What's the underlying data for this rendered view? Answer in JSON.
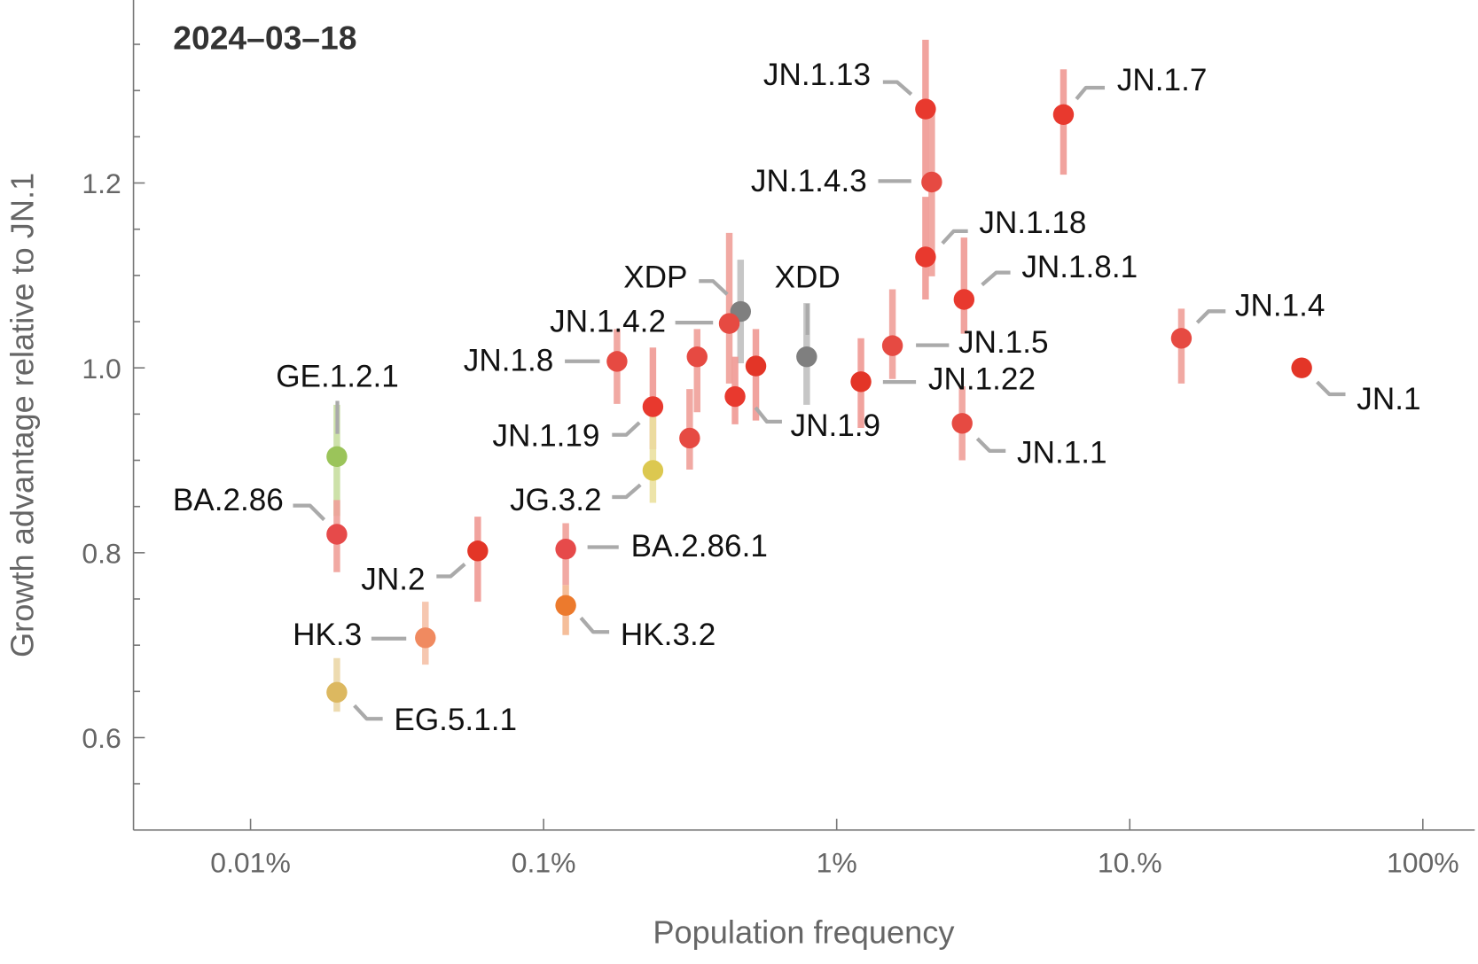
{
  "chart_data": {
    "type": "scatter",
    "title": "2024–03–18",
    "xlabel": "Population frequency",
    "ylabel": "Growth advantage relative to JN.1",
    "xscale": "log",
    "xlim_percent": [
      0.004,
      150
    ],
    "ylim": [
      0.5,
      1.4
    ],
    "xticks": [
      {
        "value": 0.01,
        "label": "0.01%"
      },
      {
        "value": 0.1,
        "label": "0.1%"
      },
      {
        "value": 1,
        "label": "1%"
      },
      {
        "value": 10,
        "label": "10.%"
      },
      {
        "value": 100,
        "label": "100%"
      }
    ],
    "yticks": [
      {
        "value": 0.6,
        "label": "0.6"
      },
      {
        "value": 0.8,
        "label": "0.8"
      },
      {
        "value": 1.0,
        "label": "1.0"
      },
      {
        "value": 1.2,
        "label": "1.2"
      }
    ],
    "yminor_step": 0.05,
    "grid": false,
    "points": [
      {
        "label": "JN.1.13",
        "freq": 2.01,
        "growth": 1.28,
        "lo": 1.197,
        "hi": 1.355,
        "color": "#e8392e",
        "bar": "#f09a94"
      },
      {
        "label": "JN.1.7",
        "freq": 5.94,
        "growth": 1.274,
        "lo": 1.209,
        "hi": 1.323,
        "color": "#e8392e",
        "bar": "#f09a94"
      },
      {
        "label": "JN.1.4.3",
        "freq": 2.11,
        "growth": 1.201,
        "lo": 1.099,
        "hi": 1.28,
        "color": "#e64a42",
        "bar": "#f0a09a"
      },
      {
        "label": "JN.1.18",
        "freq": 2.01,
        "growth": 1.12,
        "lo": 1.074,
        "hi": 1.185,
        "color": "#e8392e",
        "bar": "#f09a94"
      },
      {
        "label": "JN.1.8.1",
        "freq": 2.72,
        "growth": 1.074,
        "lo": 1.037,
        "hi": 1.141,
        "color": "#e8392e",
        "bar": "#f09a94"
      },
      {
        "label": "XDP",
        "freq": 0.47,
        "growth": 1.061,
        "lo": 1.005,
        "hi": 1.117,
        "color": "#7f7f7f",
        "bar": "#c0c0c0"
      },
      {
        "label": "XDD",
        "freq": 0.79,
        "growth": 1.012,
        "lo": 0.96,
        "hi": 1.07,
        "color": "#7f7f7f",
        "bar": "#c0c0c0"
      },
      {
        "label": "JN.1.4.2",
        "freq": 0.43,
        "growth": 1.048,
        "lo": 0.983,
        "hi": 1.146,
        "color": "#e64a42",
        "bar": "#f0a09a"
      },
      {
        "label": "JN.1.5",
        "freq": 1.55,
        "growth": 1.024,
        "lo": 0.988,
        "hi": 1.085,
        "color": "#e64a42",
        "bar": "#f0a09a"
      },
      {
        "label": "JN.1.4",
        "freq": 15.0,
        "growth": 1.032,
        "lo": 0.983,
        "hi": 1.064,
        "color": "#e64a42",
        "bar": "#f0a09a"
      },
      {
        "label": "JN.1.8",
        "freq": 0.178,
        "growth": 1.007,
        "lo": 0.961,
        "hi": 1.042,
        "color": "#e64a42",
        "bar": "#f0a09a"
      },
      {
        "label": "GE.1.2.1",
        "freq": 0.0197,
        "growth": 0.904,
        "lo": 0.84,
        "hi": 0.96,
        "color": "#9bc45a",
        "bar": "#c8dea0"
      },
      {
        "label": "JN.1.22",
        "freq": 1.21,
        "growth": 0.985,
        "lo": 0.935,
        "hi": 1.032,
        "color": "#e33527",
        "bar": "#f09a94"
      },
      {
        "label": "JN.1",
        "freq": 38.6,
        "growth": 1.0,
        "lo": 0.995,
        "hi": 1.005,
        "color": "#e33527",
        "bar": "#f09a94"
      },
      {
        "label": "JN.1.9",
        "freq": 0.53,
        "growth": 1.002,
        "lo": 0.943,
        "hi": 1.042,
        "color": "#e33527",
        "bar": "#f09a94"
      },
      {
        "label": "JN.1.19",
        "freq": 0.236,
        "growth": 0.958,
        "lo": 0.912,
        "hi": 1.022,
        "color": "#e8392e",
        "bar": "#f09a94"
      },
      {
        "label": "JN.1.1",
        "freq": 2.68,
        "growth": 0.94,
        "lo": 0.9,
        "hi": 0.98,
        "color": "#e64a42",
        "bar": "#f0a09a"
      },
      {
        "label": "JG.3.2",
        "freq": 0.236,
        "growth": 0.889,
        "lo": 0.854,
        "hi": 0.954,
        "color": "#dcc850",
        "bar": "#ece2a0"
      },
      {
        "label": "BA.2.86",
        "freq": 0.0197,
        "growth": 0.82,
        "lo": 0.779,
        "hi": 0.857,
        "color": "#e64a4a",
        "bar": "#f0a09a"
      },
      {
        "label": "BA.2.86.1",
        "freq": 0.119,
        "growth": 0.804,
        "lo": 0.765,
        "hi": 0.832,
        "color": "#e64a4a",
        "bar": "#f0a09a"
      },
      {
        "label": "JN.2",
        "freq": 0.0596,
        "growth": 0.802,
        "lo": 0.747,
        "hi": 0.839,
        "color": "#e33527",
        "bar": "#f09a94"
      },
      {
        "label": "HK.3",
        "freq": 0.0395,
        "growth": 0.708,
        "lo": 0.679,
        "hi": 0.747,
        "color": "#f08a60",
        "bar": "#f6c2a8"
      },
      {
        "label": "HK.3.2",
        "freq": 0.119,
        "growth": 0.743,
        "lo": 0.711,
        "hi": 0.765,
        "color": "#ec7a2d",
        "bar": "#f5b890"
      },
      {
        "label": "EG.5.1.1",
        "freq": 0.0197,
        "growth": 0.649,
        "lo": 0.628,
        "hi": 0.686,
        "color": "#dcb860",
        "bar": "#ecd8a8"
      },
      {
        "label": "",
        "freq": 0.334,
        "growth": 1.012,
        "lo": 0.952,
        "hi": 1.042,
        "color": "#e64a42",
        "bar": "#f0a09a"
      },
      {
        "label": "",
        "freq": 0.45,
        "growth": 0.969,
        "lo": 0.939,
        "hi": 1.012,
        "color": "#e8392e",
        "bar": "#f09a94"
      },
      {
        "label": "",
        "freq": 0.315,
        "growth": 0.924,
        "lo": 0.89,
        "hi": 0.977,
        "color": "#e64a42",
        "bar": "#f0a09a"
      }
    ]
  }
}
